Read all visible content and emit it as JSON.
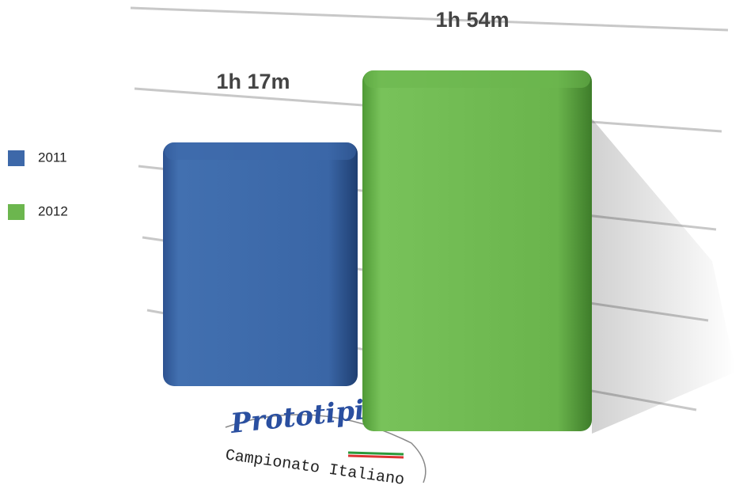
{
  "chart_data": {
    "type": "bar3d",
    "series": [
      {
        "name": "2011",
        "color": "#3d68a9",
        "values": [
          77
        ],
        "value_labels": [
          "1h 17m"
        ]
      },
      {
        "name": "2012",
        "color": "#6cb64e",
        "values": [
          114
        ],
        "value_labels": [
          "1h 54m"
        ]
      }
    ],
    "ylim": [
      0,
      120
    ]
  },
  "logo": {
    "name": "Prototipi",
    "tagline": "Campionato Italiano"
  }
}
